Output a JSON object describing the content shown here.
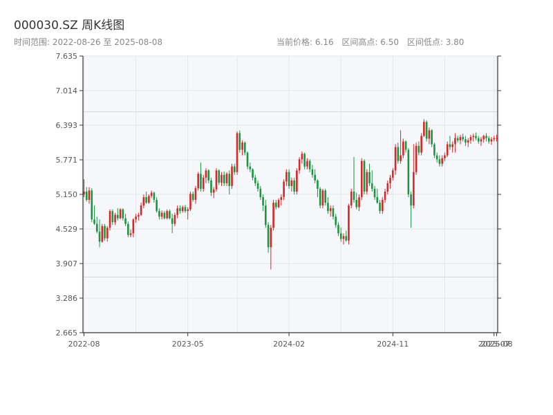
{
  "header": {
    "title": "000030.SZ 周K线图",
    "range_label": "时间范围:",
    "range_start": "2022-08-26",
    "range_sep": "至",
    "range_end": "2025-08-08",
    "current_price_label": "当前价格:",
    "current_price": "6.16",
    "range_high_label": "区间高点:",
    "range_high": "6.50",
    "range_low_label": "区间低点:",
    "range_low": "3.80"
  },
  "colors": {
    "up": "#d62728",
    "down": "#1a9641",
    "plot_bg": "#f5f7fa",
    "grid": "#e2e6eb",
    "axis": "#333333",
    "ref_line": "#d5d8dc"
  },
  "chart_data": {
    "type": "candlestick",
    "title": "",
    "xlabel": "",
    "ylabel": "",
    "ylim": [
      2.665,
      7.635
    ],
    "y_ticks": [
      "2.665",
      "3.286",
      "3.907",
      "4.529",
      "5.150",
      "5.771",
      "6.393",
      "7.014",
      "7.635"
    ],
    "x_ticks": [
      "2022-08",
      "2023-05",
      "2024-02",
      "2024-11",
      "2025-07",
      "2025-08"
    ],
    "x_ticks_index": [
      0,
      40,
      79,
      119,
      158,
      159
    ],
    "grid": true,
    "reference_lines": [
      3.665,
      6.635
    ],
    "weeks": 160,
    "ohlc": [
      [
        5.15,
        5.42,
        5.1,
        5.2
      ],
      [
        5.2,
        5.28,
        5.02,
        5.05
      ],
      [
        5.05,
        5.28,
        4.98,
        5.22
      ],
      [
        5.22,
        5.26,
        4.65,
        4.7
      ],
      [
        4.7,
        4.95,
        4.6,
        4.62
      ],
      [
        4.62,
        4.75,
        4.45,
        4.48
      ],
      [
        4.48,
        4.7,
        4.2,
        4.3
      ],
      [
        4.3,
        4.62,
        4.28,
        4.58
      ],
      [
        4.58,
        4.62,
        4.32,
        4.36
      ],
      [
        4.36,
        4.58,
        4.3,
        4.55
      ],
      [
        4.55,
        4.88,
        4.5,
        4.85
      ],
      [
        4.85,
        4.88,
        4.6,
        4.65
      ],
      [
        4.65,
        4.82,
        4.6,
        4.78
      ],
      [
        4.78,
        4.9,
        4.68,
        4.72
      ],
      [
        4.72,
        4.9,
        4.7,
        4.88
      ],
      [
        4.88,
        4.9,
        4.68,
        4.72
      ],
      [
        4.72,
        4.8,
        4.58,
        4.62
      ],
      [
        4.62,
        4.66,
        4.38,
        4.42
      ],
      [
        4.42,
        4.52,
        4.38,
        4.45
      ],
      [
        4.45,
        4.72,
        4.38,
        4.7
      ],
      [
        4.7,
        4.8,
        4.64,
        4.75
      ],
      [
        4.75,
        4.82,
        4.68,
        4.78
      ],
      [
        4.78,
        5.0,
        4.76,
        4.95
      ],
      [
        4.95,
        5.15,
        4.9,
        5.1
      ],
      [
        5.1,
        5.2,
        4.98,
        5.0
      ],
      [
        5.0,
        5.15,
        4.98,
        5.12
      ],
      [
        5.12,
        5.22,
        5.08,
        5.18
      ],
      [
        5.18,
        5.2,
        5.0,
        5.05
      ],
      [
        5.05,
        5.1,
        4.82,
        4.85
      ],
      [
        4.85,
        4.9,
        4.7,
        4.75
      ],
      [
        4.75,
        4.86,
        4.7,
        4.82
      ],
      [
        4.82,
        4.85,
        4.7,
        4.72
      ],
      [
        4.72,
        4.88,
        4.7,
        4.85
      ],
      [
        4.85,
        4.88,
        4.7,
        4.72
      ],
      [
        4.72,
        4.8,
        4.45,
        4.62
      ],
      [
        4.62,
        4.82,
        4.58,
        4.78
      ],
      [
        4.78,
        4.95,
        4.72,
        4.9
      ],
      [
        4.9,
        4.95,
        4.8,
        4.85
      ],
      [
        4.85,
        4.95,
        4.82,
        4.92
      ],
      [
        4.92,
        4.96,
        4.82,
        4.85
      ],
      [
        4.85,
        4.92,
        4.7,
        4.88
      ],
      [
        4.88,
        5.2,
        4.85,
        5.16
      ],
      [
        5.16,
        5.2,
        5.02,
        5.05
      ],
      [
        5.05,
        5.3,
        4.98,
        5.26
      ],
      [
        5.26,
        5.55,
        5.22,
        5.52
      ],
      [
        5.52,
        5.72,
        5.2,
        5.25
      ],
      [
        5.25,
        5.5,
        5.2,
        5.45
      ],
      [
        5.45,
        5.62,
        5.35,
        5.58
      ],
      [
        5.58,
        5.6,
        5.35,
        5.4
      ],
      [
        5.4,
        5.45,
        5.12,
        5.18
      ],
      [
        5.18,
        5.28,
        5.08,
        5.24
      ],
      [
        5.24,
        5.62,
        5.2,
        5.58
      ],
      [
        5.58,
        5.6,
        5.32,
        5.36
      ],
      [
        5.36,
        5.55,
        5.3,
        5.5
      ],
      [
        5.5,
        5.56,
        5.3,
        5.35
      ],
      [
        5.35,
        5.55,
        5.3,
        5.52
      ],
      [
        5.52,
        5.58,
        5.15,
        5.3
      ],
      [
        5.3,
        5.7,
        5.25,
        5.65
      ],
      [
        5.65,
        5.7,
        5.5,
        5.55
      ],
      [
        5.55,
        6.28,
        5.5,
        6.25
      ],
      [
        6.25,
        6.3,
        5.9,
        5.95
      ],
      [
        5.95,
        6.12,
        5.85,
        6.08
      ],
      [
        6.08,
        6.1,
        5.85,
        5.9
      ],
      [
        5.9,
        5.92,
        5.6,
        5.65
      ],
      [
        5.65,
        5.72,
        5.55,
        5.6
      ],
      [
        5.6,
        5.62,
        5.4,
        5.45
      ],
      [
        5.45,
        5.5,
        5.3,
        5.35
      ],
      [
        5.35,
        5.4,
        5.2,
        5.25
      ],
      [
        5.25,
        5.3,
        5.05,
        5.1
      ],
      [
        5.1,
        5.15,
        4.85,
        4.95
      ],
      [
        4.95,
        5.05,
        4.55,
        4.6
      ],
      [
        4.6,
        4.65,
        4.1,
        4.2
      ],
      [
        4.2,
        4.6,
        3.8,
        4.55
      ],
      [
        4.55,
        5.05,
        4.5,
        5.0
      ],
      [
        5.0,
        5.05,
        4.88,
        4.92
      ],
      [
        4.92,
        5.08,
        4.9,
        5.05
      ],
      [
        5.05,
        5.15,
        4.95,
        5.1
      ],
      [
        5.1,
        5.42,
        5.05,
        5.38
      ],
      [
        5.38,
        5.6,
        5.3,
        5.55
      ],
      [
        5.55,
        5.6,
        5.25,
        5.3
      ],
      [
        5.3,
        5.45,
        5.2,
        5.4
      ],
      [
        5.4,
        5.45,
        5.15,
        5.2
      ],
      [
        5.2,
        5.62,
        5.15,
        5.58
      ],
      [
        5.58,
        5.82,
        5.52,
        5.78
      ],
      [
        5.78,
        5.92,
        5.7,
        5.88
      ],
      [
        5.88,
        5.9,
        5.6,
        5.65
      ],
      [
        5.65,
        5.8,
        5.6,
        5.75
      ],
      [
        5.75,
        5.78,
        5.55,
        5.6
      ],
      [
        5.6,
        5.68,
        5.45,
        5.5
      ],
      [
        5.5,
        5.6,
        5.35,
        5.4
      ],
      [
        5.4,
        5.42,
        5.1,
        5.25
      ],
      [
        5.25,
        5.28,
        4.9,
        4.95
      ],
      [
        4.95,
        5.25,
        4.9,
        5.22
      ],
      [
        5.22,
        5.25,
        4.95,
        5.0
      ],
      [
        5.0,
        5.1,
        4.8,
        4.85
      ],
      [
        4.85,
        4.95,
        4.75,
        4.9
      ],
      [
        4.9,
        4.95,
        4.7,
        4.75
      ],
      [
        4.75,
        4.8,
        4.55,
        4.6
      ],
      [
        4.6,
        4.65,
        4.4,
        4.45
      ],
      [
        4.45,
        4.55,
        4.3,
        4.35
      ],
      [
        4.35,
        4.45,
        4.25,
        4.4
      ],
      [
        4.4,
        4.5,
        4.3,
        4.32
      ],
      [
        4.32,
        4.98,
        4.25,
        4.95
      ],
      [
        4.95,
        5.25,
        4.9,
        5.2
      ],
      [
        5.2,
        5.82,
        5.0,
        5.05
      ],
      [
        5.05,
        5.18,
        4.88,
        4.92
      ],
      [
        4.92,
        5.15,
        4.85,
        5.1
      ],
      [
        5.1,
        5.8,
        5.05,
        5.75
      ],
      [
        5.75,
        5.78,
        5.15,
        5.2
      ],
      [
        5.2,
        5.6,
        5.15,
        5.55
      ],
      [
        5.55,
        5.7,
        5.3,
        5.35
      ],
      [
        5.35,
        5.58,
        5.2,
        5.25
      ],
      [
        5.25,
        5.3,
        5.05,
        5.1
      ],
      [
        5.1,
        5.25,
        4.98,
        5.0
      ],
      [
        5.0,
        5.05,
        4.8,
        4.85
      ],
      [
        4.85,
        5.1,
        4.8,
        5.05
      ],
      [
        5.05,
        5.25,
        5.0,
        5.2
      ],
      [
        5.2,
        5.4,
        5.15,
        5.35
      ],
      [
        5.35,
        5.5,
        5.25,
        5.45
      ],
      [
        5.45,
        5.62,
        5.4,
        5.58
      ],
      [
        5.58,
        6.05,
        5.5,
        6.0
      ],
      [
        6.0,
        6.08,
        5.7,
        5.75
      ],
      [
        5.75,
        6.3,
        5.7,
        5.85
      ],
      [
        5.85,
        6.15,
        5.8,
        6.1
      ],
      [
        6.1,
        6.12,
        5.9,
        5.95
      ],
      [
        5.95,
        5.98,
        5.1,
        5.15
      ],
      [
        5.15,
        5.2,
        4.55,
        4.95
      ],
      [
        4.95,
        6.05,
        4.9,
        5.55
      ],
      [
        5.55,
        6.08,
        5.5,
        6.02
      ],
      [
        6.02,
        6.1,
        5.85,
        5.9
      ],
      [
        5.9,
        6.25,
        5.85,
        6.2
      ],
      [
        6.2,
        6.5,
        6.18,
        6.45
      ],
      [
        6.45,
        6.48,
        6.1,
        6.15
      ],
      [
        6.15,
        6.35,
        6.05,
        6.3
      ],
      [
        6.3,
        6.32,
        6.0,
        6.05
      ],
      [
        6.05,
        6.08,
        5.8,
        5.85
      ],
      [
        5.85,
        5.9,
        5.72,
        5.78
      ],
      [
        5.78,
        5.85,
        5.65,
        5.7
      ],
      [
        5.7,
        5.85,
        5.65,
        5.8
      ],
      [
        5.8,
        5.9,
        5.75,
        5.85
      ],
      [
        5.85,
        6.1,
        5.82,
        6.05
      ],
      [
        6.05,
        6.2,
        5.95,
        6.0
      ],
      [
        6.0,
        6.1,
        5.9,
        6.05
      ],
      [
        6.05,
        6.25,
        5.9,
        6.16
      ],
      [
        6.16,
        6.2,
        6.08,
        6.12
      ],
      [
        6.12,
        6.22,
        6.05,
        6.18
      ],
      [
        6.18,
        6.24,
        6.1,
        6.14
      ],
      [
        6.14,
        6.2,
        6.02,
        6.08
      ],
      [
        6.08,
        6.16,
        6.0,
        6.12
      ],
      [
        6.12,
        6.22,
        6.06,
        6.18
      ],
      [
        6.18,
        6.24,
        6.1,
        6.2
      ],
      [
        6.2,
        6.26,
        6.12,
        6.16
      ],
      [
        6.16,
        6.2,
        6.06,
        6.1
      ],
      [
        6.1,
        6.18,
        6.02,
        6.14
      ],
      [
        6.14,
        6.22,
        6.08,
        6.2
      ],
      [
        6.2,
        6.25,
        6.1,
        6.16
      ],
      [
        6.16,
        6.2,
        6.06,
        6.1
      ],
      [
        6.1,
        6.18,
        6.04,
        6.14
      ],
      [
        6.14,
        6.2,
        6.1,
        6.16
      ],
      [
        6.16,
        6.22,
        6.1,
        6.16
      ]
    ]
  }
}
